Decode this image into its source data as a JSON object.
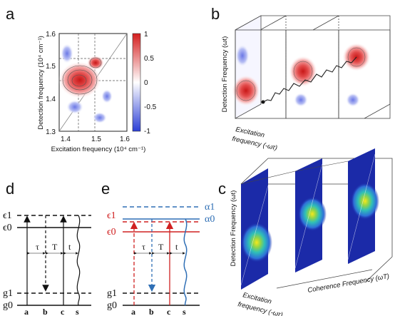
{
  "panels": {
    "a": {
      "letter": "a",
      "ylabel": "Detection frequency (10⁴ cm⁻¹)",
      "xlabel": "Excitation frequency (10⁴ cm⁻¹)",
      "yticks": [
        "1.6",
        "1.5",
        "1.4",
        "1.3"
      ],
      "xticks": [
        "1.4",
        "1.5",
        "1.6"
      ],
      "colorbar_ticks": [
        "1",
        "0.5",
        "0",
        "-0.5",
        "-1"
      ]
    },
    "b": {
      "letter": "b",
      "ylabel": "Detection Frequency (ωt)",
      "xlabel_1": "Excitation",
      "xlabel_2": "frequency (-ωτ)"
    },
    "c": {
      "letter": "c",
      "ylabel": "Detection Frequency (ωt)",
      "xlabel_1": "Excitation",
      "xlabel_2": "frequency (-ωτ)",
      "coherence_label": "Coherence  Frequency (ωT)"
    },
    "d": {
      "letter": "d",
      "levels": [
        "ϵ1",
        "ϵ0",
        "g1",
        "g0"
      ],
      "columns": [
        "a",
        "b",
        "c",
        "s"
      ],
      "intervals": [
        "τ",
        "T",
        "t"
      ]
    },
    "e": {
      "letter": "e",
      "levels_blue": [
        "α1",
        "α0"
      ],
      "levels_red": [
        "ϵ1",
        "ϵ0"
      ],
      "levels_ground": [
        "g1",
        "g0"
      ],
      "columns": [
        "a",
        "b",
        "c",
        "s"
      ],
      "intervals": [
        "τ",
        "T",
        "t"
      ]
    }
  },
  "colors": {
    "positive": "#d62828",
    "negative": "#4a5ad8",
    "spectro_bg": "#1b2aa8",
    "blue_level": "#2f6fb5",
    "red_level": "#d02020"
  }
}
